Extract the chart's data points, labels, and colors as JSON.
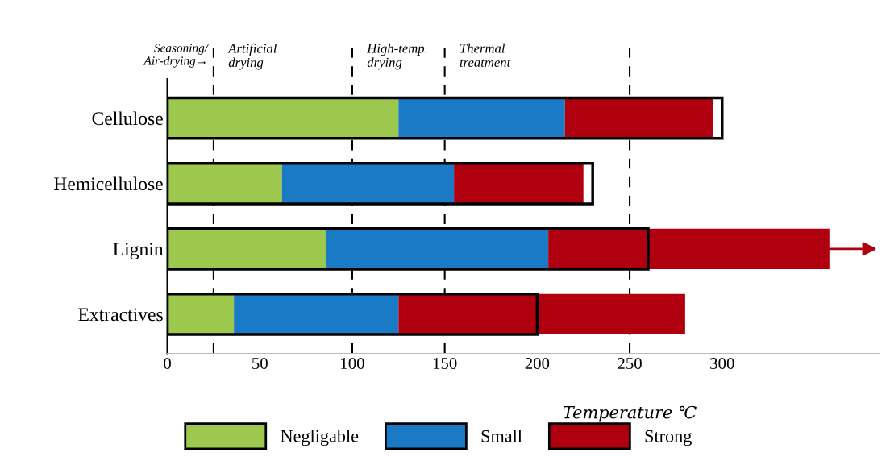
{
  "chart_data": {
    "type": "bar",
    "orientation": "horizontal",
    "categories": [
      "Cellulose",
      "Hemicellulose",
      "Lignin",
      "Extractives"
    ],
    "series": [
      {
        "name": "Negligable",
        "color": "#9dc84e",
        "values": [
          125,
          62,
          86,
          36
        ],
        "base": [
          0,
          0,
          0,
          0
        ]
      },
      {
        "name": "Small",
        "color": "#1a7ac6",
        "values": [
          90,
          93,
          120,
          89
        ],
        "base": [
          125,
          62,
          86,
          36
        ]
      },
      {
        "name": "Strong",
        "color": "#b00010",
        "values": [
          80,
          70,
          152,
          155
        ],
        "base": [
          215,
          155,
          206,
          125
        ]
      },
      {
        "color": "#000000",
        "values": [
          300,
          230,
          260,
          200
        ],
        "base": [
          0,
          0,
          0,
          0
        ]
      }
    ],
    "xlim": [
      0,
      385
    ],
    "xticks": [
      0,
      50,
      100,
      150,
      200,
      250,
      300
    ],
    "xlabel": "Temperature ℃",
    "ref_lines": [
      {
        "axis": "x",
        "value": 25,
        "line_style": "dashed",
        "color": "#000000"
      },
      {
        "axis": "x",
        "value": 100,
        "line_style": "dashed",
        "color": "#000000"
      },
      {
        "axis": "x",
        "value": 150,
        "line_style": "dashed",
        "color": "#000000"
      },
      {
        "axis": "x",
        "value": 250,
        "line_style": "dashed",
        "color": "#000000"
      }
    ],
    "annotations": [
      "Seasoning/\nAir-drying→",
      "Artificial\ndrying",
      "High-temp.\ndrying",
      "Thermal\ntreatment"
    ],
    "legend": "bottom left",
    "grid": false
  }
}
